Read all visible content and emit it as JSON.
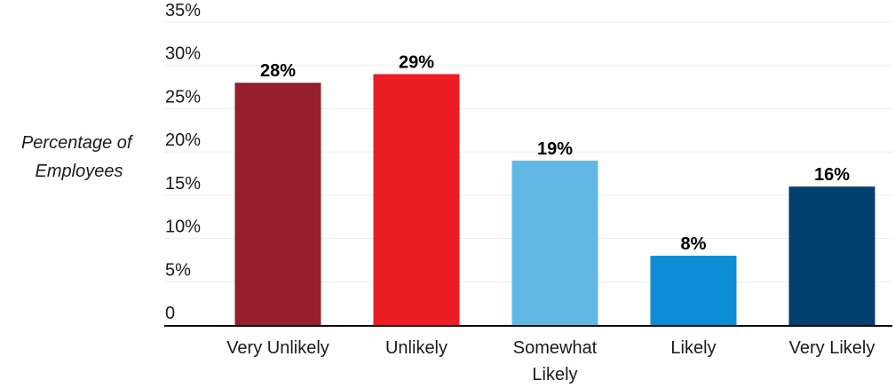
{
  "chart_data": {
    "type": "bar",
    "title": "",
    "xlabel": "",
    "ylabel_lines": [
      "Percentage of",
      "Employees"
    ],
    "categories": [
      [
        "Very Unlikely"
      ],
      [
        "Unlikely"
      ],
      [
        "Somewhat",
        "Likely"
      ],
      [
        "Likely"
      ],
      [
        "Very Likely"
      ]
    ],
    "values": [
      28,
      29,
      19,
      8,
      16
    ],
    "value_labels": [
      "28%",
      "29%",
      "19%",
      "8%",
      "16%"
    ],
    "colors": [
      "#961f2e",
      "#ec1c24",
      "#62b8e5",
      "#0b8ed6",
      "#003f6e"
    ],
    "ylim": [
      0,
      35
    ],
    "yticks": [
      {
        "value": 0,
        "label": "0"
      },
      {
        "value": 5,
        "label": "5%"
      },
      {
        "value": 10,
        "label": "10%"
      },
      {
        "value": 15,
        "label": "15%"
      },
      {
        "value": 20,
        "label": "20%"
      },
      {
        "value": 25,
        "label": "25%"
      },
      {
        "value": 30,
        "label": "30%"
      },
      {
        "value": 35,
        "label": "35%"
      }
    ],
    "grid": true,
    "legend": "none"
  }
}
